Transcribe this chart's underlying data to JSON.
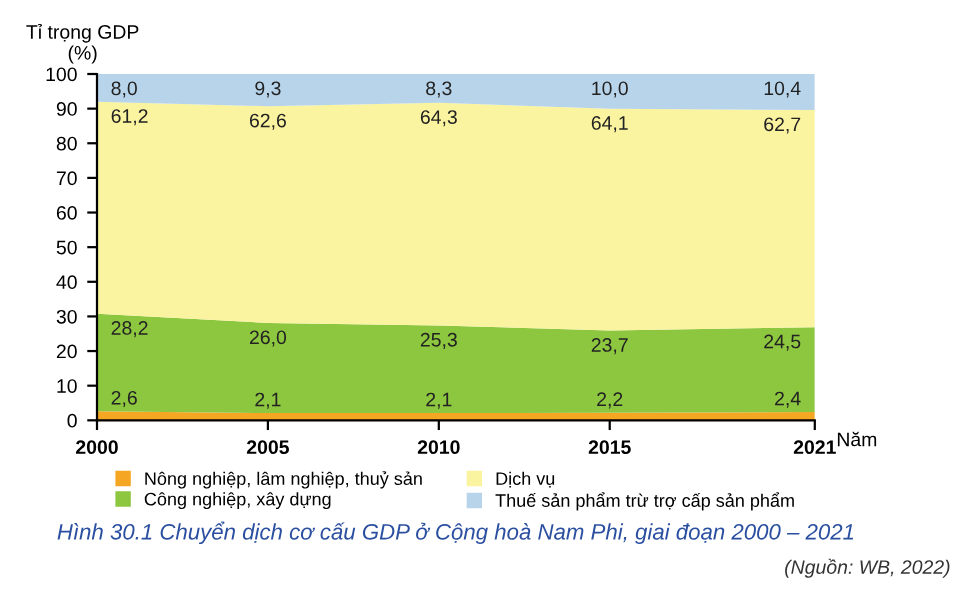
{
  "chart_data": {
    "type": "area",
    "stacked": true,
    "title": "Hình 30.1 Chuyển dịch cơ cấu GDP ở Cộng hoà Nam Phi, giai đoạn 2000 – 2021",
    "ylabel": "Tỉ trọng GDP\n(%)",
    "xlabel": "Năm",
    "annotations": [
      "(Nguồn: WB, 2022)"
    ],
    "x": [
      2000,
      2005,
      2010,
      2015,
      2021
    ],
    "xlim": [
      2000,
      2021
    ],
    "xticks": [
      2000,
      2005,
      2010,
      2015,
      2021
    ],
    "ylim": [
      0,
      100
    ],
    "yticks": [
      0,
      10,
      20,
      30,
      40,
      50,
      60,
      70,
      80,
      90,
      100
    ],
    "grid": false,
    "legend": "bottom",
    "series": [
      {
        "name": "Nông nghiệp, lâm nghiệp, thuỷ sản",
        "color": "#f5a623",
        "values": [
          2.6,
          2.1,
          2.1,
          2.2,
          2.4
        ],
        "value_labels": [
          "2,6",
          "2,1",
          "2,1",
          "2,2",
          "2,4"
        ]
      },
      {
        "name": "Công nghiệp, xây dựng",
        "color": "#8dc63f",
        "values": [
          28.2,
          26.0,
          25.3,
          23.7,
          24.5
        ],
        "value_labels": [
          "28,2",
          "26,0",
          "25,3",
          "23,7",
          "24,5"
        ]
      },
      {
        "name": "Dịch vụ",
        "color": "#faf3a0",
        "values": [
          61.2,
          62.6,
          64.3,
          64.1,
          62.7
        ],
        "value_labels": [
          "61,2",
          "62,6",
          "64,3",
          "64,1",
          "62,7"
        ]
      },
      {
        "name": "Thuế sản phẩm trừ trợ cấp sản phẩm",
        "color": "#b8d4ea",
        "values": [
          8.0,
          9.3,
          8.3,
          10.0,
          10.4
        ],
        "value_labels": [
          "8,0",
          "9,3",
          "8,3",
          "10,0",
          "10,4"
        ]
      }
    ]
  }
}
